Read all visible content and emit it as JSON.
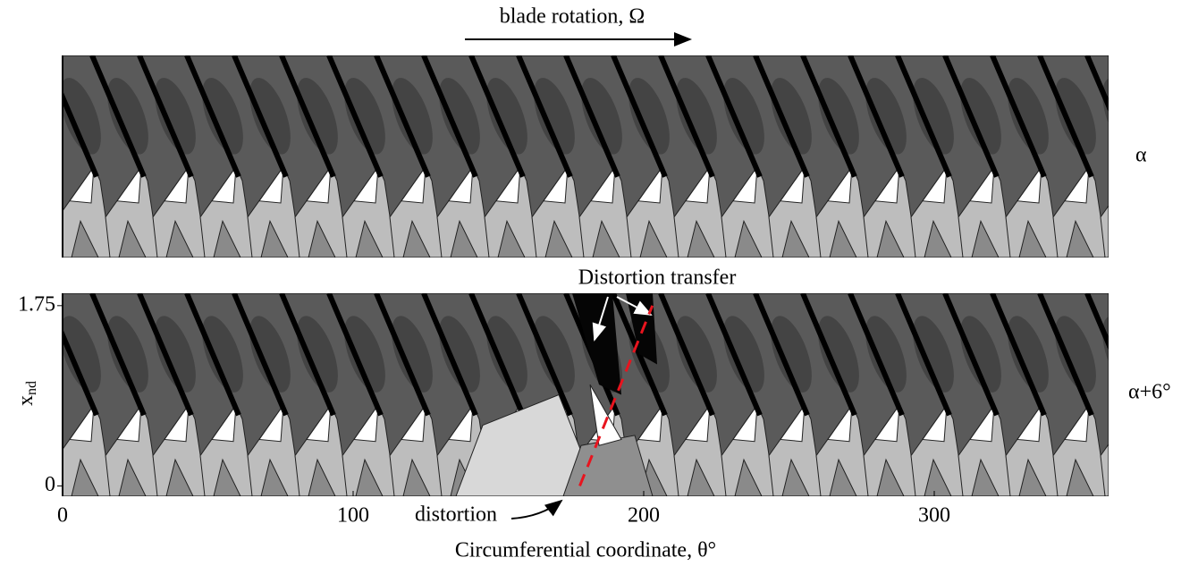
{
  "chart_data": [
    {
      "type": "contour",
      "annotation": "blade rotation, Ω",
      "panel_label": "α",
      "xlim": [
        0,
        360
      ],
      "ylim": [
        -0.1,
        1.87
      ]
    },
    {
      "type": "contour",
      "panel_label": "α+6°",
      "xlim": [
        0,
        360
      ],
      "ylim": [
        -0.1,
        1.87
      ],
      "xticks": [
        0,
        100,
        200,
        300
      ],
      "yticks": [
        0,
        1.75
      ],
      "xlabel": "Circumferential coordinate, θ°",
      "ylabel": {
        "text": "x",
        "subscript": "nd"
      },
      "annotations": [
        "Distortion transfer",
        "distortion"
      ],
      "dashed_line": {
        "color": "#e8141e",
        "x": [
          178,
          203
        ],
        "y": [
          0,
          1.75
        ]
      }
    }
  ]
}
